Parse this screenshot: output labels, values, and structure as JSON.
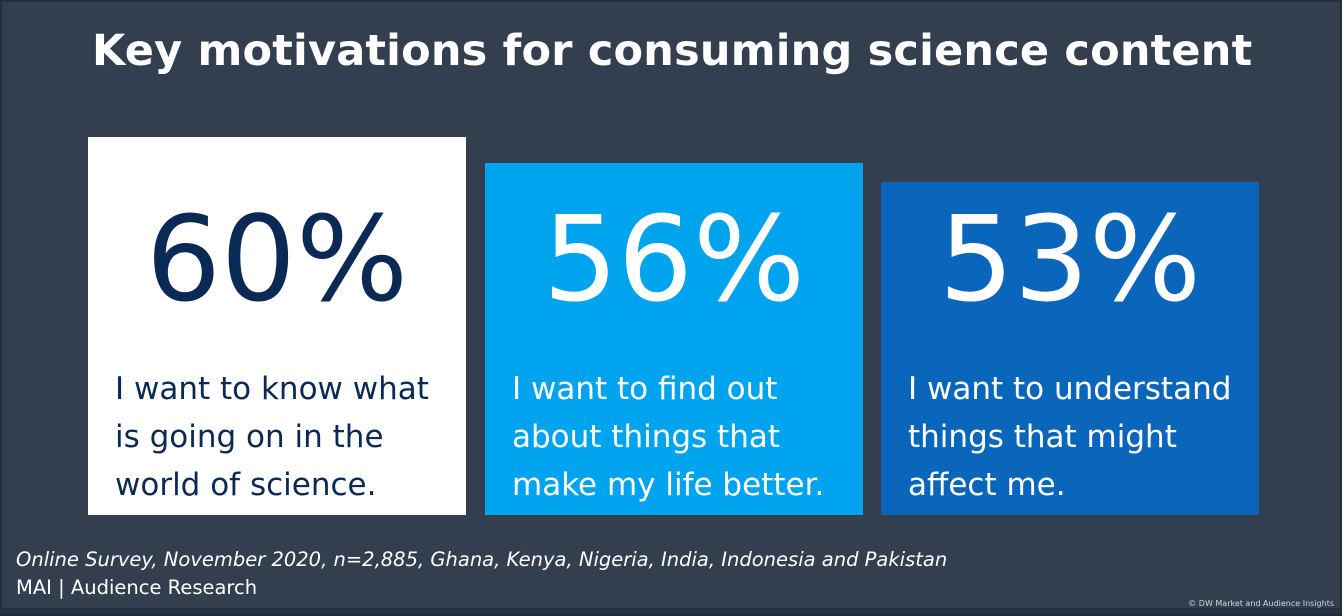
{
  "title": "Key motivations for consuming science content",
  "chart_data": {
    "type": "table",
    "title": "Key motivations for consuming science content",
    "unit": "%",
    "categories": [
      "I want to know what is going on in the world of science.",
      "I want to find out about things that make my life better.",
      "I want to understand things that might affect me."
    ],
    "values": [
      60,
      56,
      53
    ],
    "labels": [
      "60%",
      "56%",
      "53%"
    ]
  },
  "cards": [
    {
      "value_label": "60%",
      "lines": [
        "I want to know what",
        "is going on in the",
        "world of science."
      ],
      "background": "#ffffff",
      "text_color": "#0a2a55"
    },
    {
      "value_label": "56%",
      "lines": [
        "I want to find out",
        "about things that",
        "make my life better."
      ],
      "background": "#00a3ee",
      "text_color": "#ffffff"
    },
    {
      "value_label": "53%",
      "lines": [
        "I want to understand",
        "things that might",
        "affect me."
      ],
      "background": "#0a66bb",
      "text_color": "#ffffff"
    }
  ],
  "footer": {
    "source": "Online Survey, November 2020, n=2,885, Ghana, Kenya, Nigeria, India, Indonesia and Pakistan",
    "credit": "MAI | Audience Research",
    "copyright": "© DW Market and Audience Insights"
  },
  "colors": {
    "background": "#333e4e",
    "title": "#ffffff"
  }
}
